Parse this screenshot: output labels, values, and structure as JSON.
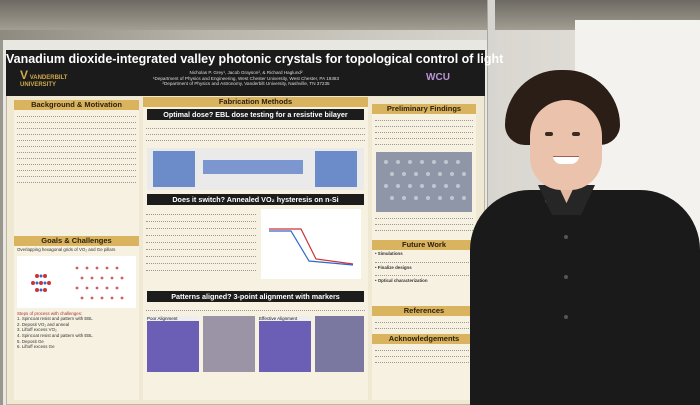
{
  "poster": {
    "title": "Vanadium dioxide-integrated valley photonic crystals for topological control of light",
    "authors": "Nicholas P. Grey¹, Jacob Grayson², & Richard Haglund²",
    "affil1": "¹Department of Physics and Engineering, West Chester University, West Chester, PA 19383",
    "affil2": "²Department of Physics and Astronomy, Vanderbilt University, Nashville, TN 37235",
    "logo_left": "VANDERBILT UNIVERSITY",
    "logo_right": "WCU",
    "left_col": {
      "section1": "Background & Motivation",
      "section2": "Goals & Challenges",
      "goal_text": "Overlapping hexagonal grids of VO₂ and Ge pillars",
      "steps_intro": "Steps of process with challenges:",
      "steps": [
        "Spincoat resist and pattern with EBL",
        "Deposit VO₂ and anneal",
        "Liftoff excess VO₂",
        "Spincoat resist and pattern with EBL",
        "Deposit Ge",
        "Liftoff excess Ge"
      ]
    },
    "mid_col": {
      "header": "Fabrication Methods",
      "q1": "Optimal dose? EBL dose testing for a resistive bilayer",
      "q2": "Does it switch? Annealed VO₂ hysteresis on n-Si",
      "q3": "Patterns aligned? 3-point alignment with markers",
      "panels": [
        "Poor Alignment",
        "Effective Alignment"
      ]
    },
    "right_col": {
      "section1": "Preliminary Findings",
      "section2": "Future Work",
      "section3": "References",
      "section4": "Acknowledgements",
      "future_items": [
        "Simulations",
        "Finalize designs",
        "Optical characterization"
      ]
    }
  }
}
